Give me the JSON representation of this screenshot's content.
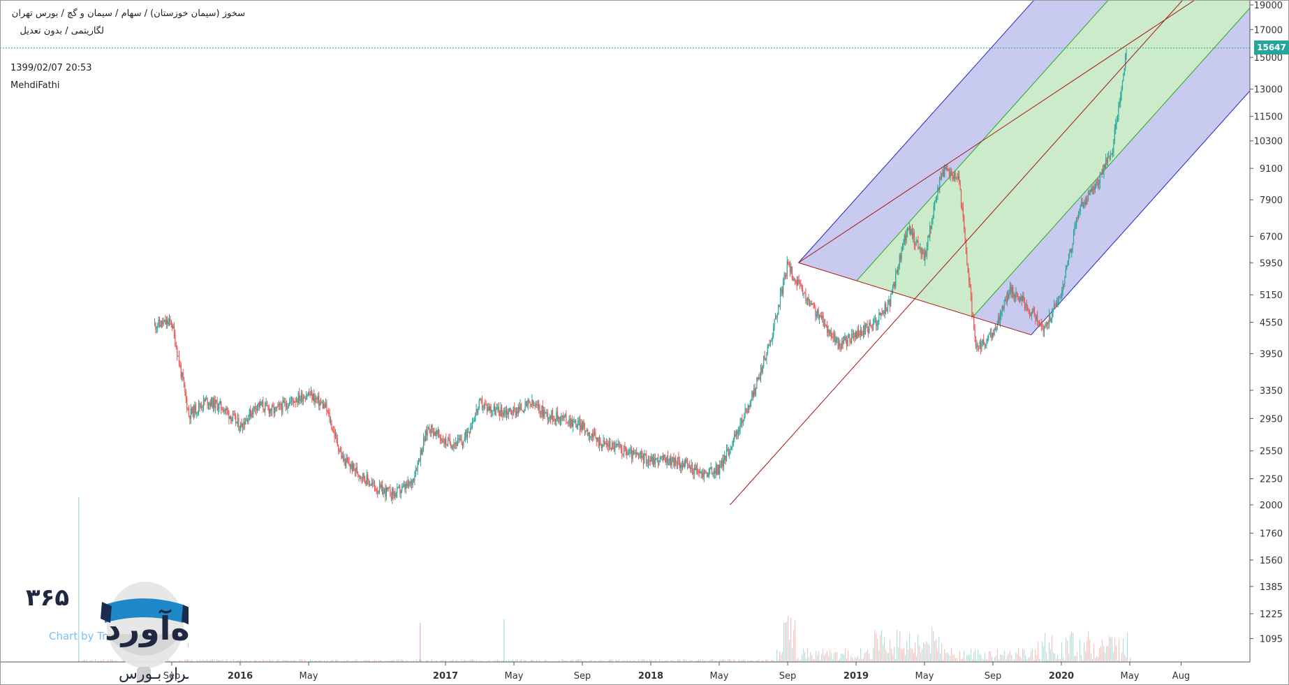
{
  "header": {
    "title_line1": "سخوز (سیمان خوزستان) / سهام / سیمان و گچ / بورس تهران",
    "title_line2": "لگاریتمی / بدون تعدیل",
    "timestamp": "1399/02/07 20:53",
    "author": "MehdiFathi"
  },
  "last_price": "15647",
  "colors": {
    "up": "#26a69a",
    "down": "#ef5350",
    "fork_blue_fill": "#c5c8ee",
    "fork_green_fill": "#c8eac8",
    "fork_blue_line": "#2222bb",
    "fork_green_line": "#22aa22",
    "red_line": "#aa1111",
    "price_line": "#26a69a"
  },
  "logo": {
    "number": "۳۶۵",
    "word": "ره‌آورد",
    "sub": "برفـسراز بـورس",
    "watermark": "Chart by Tr"
  },
  "chart_data": {
    "type": "candlestick",
    "title": "سخوز (سیمان خوزستان) / سهام / سیمان و گچ / بورس تهران",
    "scale": "log",
    "y_ticks": [
      19000,
      17000,
      15000,
      13000,
      11500,
      10300,
      9100,
      7900,
      6700,
      5950,
      5150,
      4550,
      3950,
      3350,
      2950,
      2550,
      2250,
      2000,
      1760,
      1560,
      1385,
      1225,
      1095
    ],
    "x_ticks": [
      {
        "label": "Sep",
        "bold": false
      },
      {
        "label": "2016",
        "bold": true
      },
      {
        "label": "May",
        "bold": false
      },
      {
        "label": "2017",
        "bold": true
      },
      {
        "label": "May",
        "bold": false
      },
      {
        "label": "Sep",
        "bold": false
      },
      {
        "label": "2018",
        "bold": true
      },
      {
        "label": "May",
        "bold": false
      },
      {
        "label": "Sep",
        "bold": false
      },
      {
        "label": "2019",
        "bold": true
      },
      {
        "label": "May",
        "bold": false
      },
      {
        "label": "Sep",
        "bold": false
      },
      {
        "label": "2020",
        "bold": true
      },
      {
        "label": "May",
        "bold": false
      },
      {
        "label": "Aug",
        "bold": false
      }
    ],
    "price_path": [
      {
        "date": "2015-08",
        "close": 4500
      },
      {
        "date": "2015-09",
        "close": 4550
      },
      {
        "date": "2015-10",
        "close": 3000
      },
      {
        "date": "2015-11",
        "close": 3200
      },
      {
        "date": "2015-12",
        "close": 3100
      },
      {
        "date": "2016-01",
        "close": 2850
      },
      {
        "date": "2016-02",
        "close": 3150
      },
      {
        "date": "2016-03",
        "close": 3050
      },
      {
        "date": "2016-04",
        "close": 3200
      },
      {
        "date": "2016-05",
        "close": 3300
      },
      {
        "date": "2016-06",
        "close": 3100
      },
      {
        "date": "2016-07",
        "close": 2450
      },
      {
        "date": "2016-08",
        "close": 2300
      },
      {
        "date": "2016-09",
        "close": 2150
      },
      {
        "date": "2016-10",
        "close": 2100
      },
      {
        "date": "2016-11",
        "close": 2200
      },
      {
        "date": "2016-12",
        "close": 2850
      },
      {
        "date": "2017-01",
        "close": 2650
      },
      {
        "date": "2017-02",
        "close": 2650
      },
      {
        "date": "2017-03",
        "close": 3150
      },
      {
        "date": "2017-04",
        "close": 3050
      },
      {
        "date": "2017-05",
        "close": 3050
      },
      {
        "date": "2017-06",
        "close": 3150
      },
      {
        "date": "2017-07",
        "close": 3000
      },
      {
        "date": "2017-08",
        "close": 2950
      },
      {
        "date": "2017-09",
        "close": 2850
      },
      {
        "date": "2017-10",
        "close": 2650
      },
      {
        "date": "2017-11",
        "close": 2600
      },
      {
        "date": "2017-12",
        "close": 2500
      },
      {
        "date": "2018-01",
        "close": 2450
      },
      {
        "date": "2018-02",
        "close": 2450
      },
      {
        "date": "2018-03",
        "close": 2400
      },
      {
        "date": "2018-04",
        "close": 2300
      },
      {
        "date": "2018-05",
        "close": 2350
      },
      {
        "date": "2018-06",
        "close": 2750
      },
      {
        "date": "2018-07",
        "close": 3300
      },
      {
        "date": "2018-08",
        "close": 4200
      },
      {
        "date": "2018-09",
        "close": 5900
      },
      {
        "date": "2018-10",
        "close": 5100
      },
      {
        "date": "2018-11",
        "close": 4600
      },
      {
        "date": "2018-12",
        "close": 4100
      },
      {
        "date": "2019-01",
        "close": 4300
      },
      {
        "date": "2019-02",
        "close": 4500
      },
      {
        "date": "2019-03",
        "close": 5000
      },
      {
        "date": "2019-04",
        "close": 7000
      },
      {
        "date": "2019-05",
        "close": 6100
      },
      {
        "date": "2019-06",
        "close": 9000
      },
      {
        "date": "2019-07",
        "close": 8800
      },
      {
        "date": "2019-08",
        "close": 4000
      },
      {
        "date": "2019-09",
        "close": 4300
      },
      {
        "date": "2019-10",
        "close": 5300
      },
      {
        "date": "2019-11",
        "close": 4900
      },
      {
        "date": "2019-12",
        "close": 4400
      },
      {
        "date": "2020-01",
        "close": 5200
      },
      {
        "date": "2020-02",
        "close": 7500
      },
      {
        "date": "2020-03",
        "close": 8400
      },
      {
        "date": "2020-04",
        "close": 10000
      },
      {
        "date": "2020-04-26",
        "close": 15647
      }
    ]
  }
}
